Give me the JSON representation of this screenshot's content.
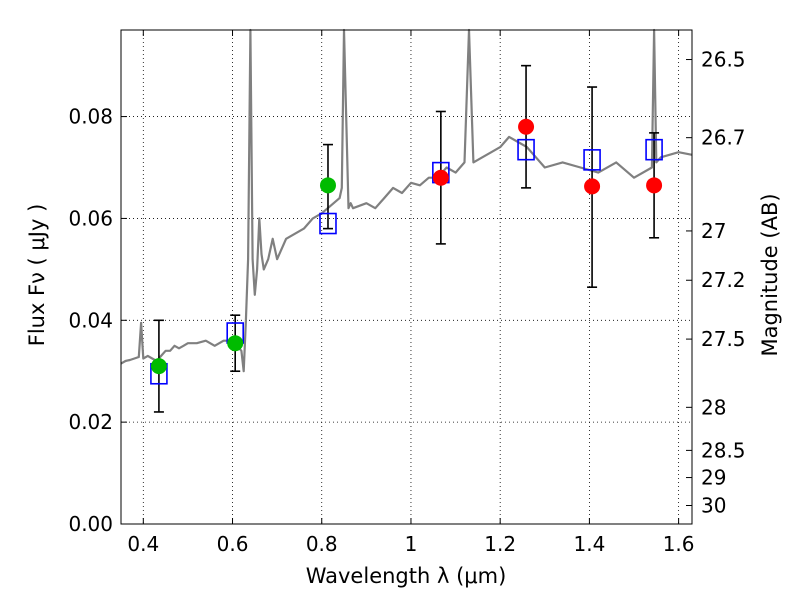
{
  "chart_data": {
    "type": "scatter",
    "title": "",
    "xlabel": "Wavelength  λ (μm)",
    "ylabel": "Flux  Fν  ( μJy )",
    "ylabel_right": "Magnitude (AB)",
    "xlim": [
      0.35,
      1.63
    ],
    "ylim": [
      0.0,
      0.097
    ],
    "grid": true,
    "x_ticks": [
      {
        "value": 0.4,
        "label": "0.4"
      },
      {
        "value": 0.6,
        "label": "0.6"
      },
      {
        "value": 0.8,
        "label": "0.8"
      },
      {
        "value": 1.0,
        "label": "1"
      },
      {
        "value": 1.2,
        "label": "1.2"
      },
      {
        "value": 1.4,
        "label": "1.4"
      },
      {
        "value": 1.6,
        "label": "1.6"
      }
    ],
    "y_ticks": [
      {
        "value": 0.0,
        "label": "0.00"
      },
      {
        "value": 0.02,
        "label": "0.02"
      },
      {
        "value": 0.04,
        "label": "0.04"
      },
      {
        "value": 0.06,
        "label": "0.06"
      },
      {
        "value": 0.08,
        "label": "0.08"
      }
    ],
    "mag_ticks": [
      {
        "mag": 26.5,
        "label": "26.5"
      },
      {
        "mag": 26.7,
        "label": "26.7"
      },
      {
        "mag": 27.0,
        "label": "27"
      },
      {
        "mag": 27.2,
        "label": "27.2"
      },
      {
        "mag": 27.5,
        "label": "27.5"
      },
      {
        "mag": 28.0,
        "label": "28"
      },
      {
        "mag": 28.5,
        "label": "28.5"
      },
      {
        "mag": 29.0,
        "label": "29"
      },
      {
        "mag": 30.0,
        "label": "30"
      }
    ],
    "colors": {
      "spectrum": "#808080",
      "optical_points": "#00bb00",
      "ir_points": "#ff0000",
      "model_boxes": "#0000ff",
      "error_bars": "#000000",
      "grid": "#000000"
    },
    "series": [
      {
        "kind": "spectrum",
        "x": [
          0.35,
          0.36,
          0.37,
          0.38,
          0.39,
          0.395,
          0.4,
          0.41,
          0.42,
          0.43,
          0.44,
          0.45,
          0.46,
          0.47,
          0.48,
          0.49,
          0.5,
          0.52,
          0.54,
          0.56,
          0.58,
          0.6,
          0.61,
          0.62,
          0.625,
          0.63,
          0.635,
          0.64,
          0.645,
          0.65,
          0.655,
          0.66,
          0.665,
          0.67,
          0.68,
          0.69,
          0.7,
          0.72,
          0.74,
          0.76,
          0.78,
          0.8,
          0.82,
          0.84,
          0.845,
          0.85,
          0.86,
          0.865,
          0.87,
          0.9,
          0.92,
          0.94,
          0.96,
          0.98,
          1.0,
          1.02,
          1.04,
          1.06,
          1.08,
          1.1,
          1.12,
          1.13,
          1.14,
          1.16,
          1.18,
          1.2,
          1.22,
          1.24,
          1.26,
          1.28,
          1.3,
          1.34,
          1.38,
          1.42,
          1.46,
          1.5,
          1.54,
          1.545,
          1.55,
          1.56,
          1.6,
          1.63
        ],
        "y": [
          0.0315,
          0.032,
          0.0322,
          0.0325,
          0.0328,
          0.0395,
          0.0325,
          0.033,
          0.0325,
          0.032,
          0.033,
          0.034,
          0.034,
          0.035,
          0.0345,
          0.035,
          0.0355,
          0.0355,
          0.036,
          0.035,
          0.036,
          0.036,
          0.035,
          0.034,
          0.03,
          0.04,
          0.052,
          0.097,
          0.052,
          0.045,
          0.05,
          0.06,
          0.053,
          0.05,
          0.052,
          0.056,
          0.052,
          0.056,
          0.057,
          0.058,
          0.06,
          0.061,
          0.0625,
          0.064,
          0.066,
          0.097,
          0.062,
          0.063,
          0.062,
          0.063,
          0.062,
          0.064,
          0.066,
          0.065,
          0.067,
          0.0665,
          0.068,
          0.068,
          0.07,
          0.069,
          0.071,
          0.097,
          0.071,
          0.072,
          0.073,
          0.074,
          0.076,
          0.075,
          0.074,
          0.072,
          0.07,
          0.071,
          0.07,
          0.069,
          0.071,
          0.068,
          0.07,
          0.097,
          0.071,
          0.072,
          0.073,
          0.0725
        ]
      },
      {
        "kind": "points",
        "color": "#00bb00",
        "points": [
          {
            "x": 0.435,
            "y": 0.031,
            "err_low": 0.022,
            "err_high": 0.04
          },
          {
            "x": 0.606,
            "y": 0.0355,
            "err_low": 0.03,
            "err_high": 0.041
          },
          {
            "x": 0.814,
            "y": 0.0665,
            "err_low": 0.058,
            "err_high": 0.0745
          }
        ]
      },
      {
        "kind": "points",
        "color": "#ff0000",
        "points": [
          {
            "x": 1.067,
            "y": 0.068,
            "err_low": 0.055,
            "err_high": 0.081
          },
          {
            "x": 1.258,
            "y": 0.078,
            "err_low": 0.066,
            "err_high": 0.09
          },
          {
            "x": 1.406,
            "y": 0.0663,
            "err_low": 0.0465,
            "err_high": 0.0858
          },
          {
            "x": 1.545,
            "y": 0.0665,
            "err_low": 0.0562,
            "err_high": 0.0768
          }
        ]
      },
      {
        "kind": "model_boxes",
        "color": "#0000ff",
        "points": [
          {
            "x": 0.435,
            "y": 0.0295
          },
          {
            "x": 0.606,
            "y": 0.0375
          },
          {
            "x": 0.814,
            "y": 0.059
          },
          {
            "x": 1.067,
            "y": 0.069
          },
          {
            "x": 1.258,
            "y": 0.0735
          },
          {
            "x": 1.406,
            "y": 0.0715
          },
          {
            "x": 1.545,
            "y": 0.0735
          }
        ]
      }
    ]
  }
}
